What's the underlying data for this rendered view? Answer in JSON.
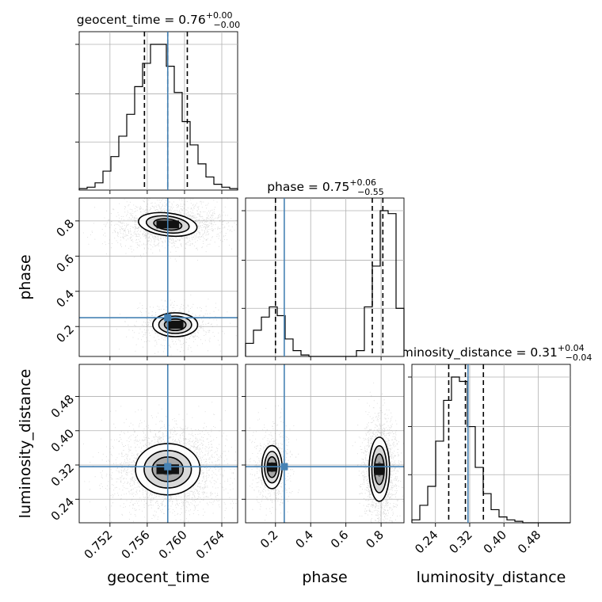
{
  "chart_data": {
    "type": "corner",
    "parameters": [
      "geocent_time",
      "phase",
      "luminosity_distance"
    ],
    "truths": {
      "geocent_time": 0.7582,
      "phase": 0.25,
      "luminosity_distance": 0.316
    },
    "truth_color": "#4682b4",
    "titles": {
      "geocent_time": {
        "name": "geocent_time",
        "median": "0.76",
        "plus": "+0.00",
        "minus": "−0.00"
      },
      "phase": {
        "name": "phase",
        "median": "0.75",
        "plus": "+0.06",
        "minus": "−0.55"
      },
      "luminosity_distance": {
        "name": "luminosity_distance",
        "median": "0.31",
        "plus": "+0.04",
        "minus": "−0.04"
      }
    },
    "axes": {
      "geocent_time": {
        "label": "geocent_time",
        "range": [
          0.7487,
          0.7657
        ],
        "ticks": [
          "0.752",
          "0.756",
          "0.760",
          "0.764"
        ]
      },
      "phase": {
        "label": "phase",
        "range": [
          0.03,
          0.93
        ],
        "ticks": [
          "0.2",
          "0.4",
          "0.6",
          "0.8"
        ]
      },
      "luminosity_distance": {
        "label": "luminosity_distance",
        "range": [
          0.185,
          0.555
        ],
        "ticks": [
          "0.24",
          "0.32",
          "0.40",
          "0.48"
        ]
      }
    },
    "quantiles": {
      "geocent_time": [
        0.7557,
        0.7582,
        0.7603
      ],
      "phase": [
        0.2,
        0.75,
        0.81
      ],
      "luminosity_distance": [
        0.271,
        0.31,
        0.352
      ]
    },
    "histograms": {
      "geocent_time": {
        "edges_range": [
          0.7487,
          0.7657
        ],
        "bins": 20,
        "counts": [
          1,
          2,
          5,
          13,
          23,
          37,
          52,
          71,
          87,
          100,
          100,
          85,
          67,
          47,
          31,
          18,
          9,
          4,
          2,
          1
        ]
      },
      "phase": {
        "edges_range": [
          0.03,
          0.93
        ],
        "bins": 20,
        "counts": [
          9,
          18,
          27,
          34,
          28,
          12,
          4,
          1,
          0,
          0,
          0,
          0,
          0,
          0,
          4,
          34,
          62,
          100,
          98,
          33
        ]
      },
      "luminosity_distance": {
        "edges_range": [
          0.185,
          0.555
        ],
        "bins": 20,
        "counts": [
          2,
          12,
          25,
          56,
          84,
          100,
          97,
          66,
          38,
          20,
          9,
          4,
          2,
          1,
          0,
          0,
          0,
          0,
          0,
          0
        ]
      }
    },
    "grid": true
  }
}
